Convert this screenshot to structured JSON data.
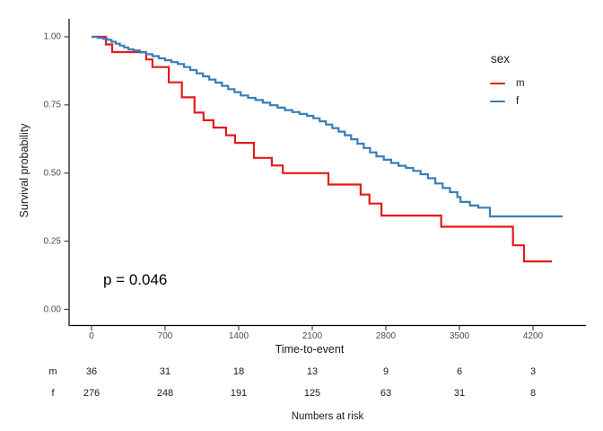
{
  "chart_data": {
    "type": "line",
    "subtype": "kaplan_meier_step",
    "title": "",
    "xlabel": "Time-to-event",
    "ylabel": "Survival probability",
    "x_ticks": [
      0,
      700,
      1400,
      2100,
      2800,
      3500,
      4200
    ],
    "x_tick_labels": [
      "0",
      "700",
      "1400",
      "2100",
      "2800",
      "3500",
      "4200"
    ],
    "y_ticks": [
      1.0,
      0.75,
      0.5,
      0.25,
      0.0
    ],
    "y_tick_labels": [
      "1.00",
      "0.75",
      "0.50",
      "0.25",
      "0.00"
    ],
    "xlim": [
      -180,
      4700
    ],
    "ylim": [
      -0.06,
      1.06
    ],
    "grid": "off",
    "annotations": {
      "p_value": "p = 0.046"
    },
    "legend": {
      "title": "sex",
      "position": "right",
      "entries": [
        {
          "label": "m",
          "color": "#E41A1C"
        },
        {
          "label": "f",
          "color": "#377EB8"
        }
      ]
    },
    "series": [
      {
        "name": "m",
        "color": "#E41A1C",
        "points": [
          [
            0,
            1.0
          ],
          [
            137,
            0.972
          ],
          [
            196,
            0.944
          ],
          [
            520,
            0.917
          ],
          [
            580,
            0.889
          ],
          [
            735,
            0.833
          ],
          [
            860,
            0.778
          ],
          [
            980,
            0.722
          ],
          [
            1065,
            0.694
          ],
          [
            1160,
            0.667
          ],
          [
            1280,
            0.639
          ],
          [
            1365,
            0.611
          ],
          [
            1545,
            0.556
          ],
          [
            1715,
            0.528
          ],
          [
            1820,
            0.5
          ],
          [
            2254,
            0.458
          ],
          [
            2560,
            0.421
          ],
          [
            2644,
            0.388
          ],
          [
            2758,
            0.344
          ],
          [
            3327,
            0.303
          ],
          [
            4010,
            0.235
          ],
          [
            4115,
            0.176
          ],
          [
            4380,
            0.176
          ]
        ]
      },
      {
        "name": "f",
        "color": "#377EB8",
        "points": [
          [
            0,
            1.0
          ],
          [
            60,
            0.996
          ],
          [
            110,
            0.993
          ],
          [
            150,
            0.989
          ],
          [
            190,
            0.982
          ],
          [
            230,
            0.975
          ],
          [
            270,
            0.968
          ],
          [
            310,
            0.961
          ],
          [
            350,
            0.954
          ],
          [
            400,
            0.95
          ],
          [
            460,
            0.943
          ],
          [
            520,
            0.936
          ],
          [
            580,
            0.929
          ],
          [
            640,
            0.921
          ],
          [
            700,
            0.914
          ],
          [
            760,
            0.907
          ],
          [
            820,
            0.9
          ],
          [
            880,
            0.889
          ],
          [
            940,
            0.878
          ],
          [
            1000,
            0.866
          ],
          [
            1060,
            0.855
          ],
          [
            1120,
            0.843
          ],
          [
            1180,
            0.832
          ],
          [
            1240,
            0.82
          ],
          [
            1300,
            0.808
          ],
          [
            1360,
            0.797
          ],
          [
            1420,
            0.785
          ],
          [
            1490,
            0.776
          ],
          [
            1560,
            0.768
          ],
          [
            1630,
            0.758
          ],
          [
            1700,
            0.749
          ],
          [
            1770,
            0.74
          ],
          [
            1840,
            0.731
          ],
          [
            1910,
            0.724
          ],
          [
            1980,
            0.717
          ],
          [
            2050,
            0.71
          ],
          [
            2110,
            0.701
          ],
          [
            2170,
            0.69
          ],
          [
            2230,
            0.678
          ],
          [
            2290,
            0.665
          ],
          [
            2350,
            0.652
          ],
          [
            2410,
            0.639
          ],
          [
            2470,
            0.624
          ],
          [
            2530,
            0.608
          ],
          [
            2590,
            0.592
          ],
          [
            2650,
            0.576
          ],
          [
            2710,
            0.561
          ],
          [
            2780,
            0.549
          ],
          [
            2850,
            0.537
          ],
          [
            2920,
            0.527
          ],
          [
            2990,
            0.519
          ],
          [
            3060,
            0.508
          ],
          [
            3130,
            0.496
          ],
          [
            3200,
            0.481
          ],
          [
            3270,
            0.462
          ],
          [
            3340,
            0.445
          ],
          [
            3410,
            0.43
          ],
          [
            3480,
            0.412
          ],
          [
            3510,
            0.394
          ],
          [
            3600,
            0.381
          ],
          [
            3680,
            0.373
          ],
          [
            3790,
            0.341
          ],
          [
            4482,
            0.341
          ]
        ]
      }
    ],
    "risk_table": {
      "caption": "Numbers at risk",
      "times": [
        0,
        700,
        1400,
        2100,
        2800,
        3500,
        4200
      ],
      "rows": [
        {
          "label": "m",
          "counts": [
            36,
            31,
            18,
            13,
            9,
            6,
            3
          ]
        },
        {
          "label": "f",
          "counts": [
            276,
            248,
            191,
            125,
            63,
            31,
            8
          ]
        }
      ]
    }
  }
}
